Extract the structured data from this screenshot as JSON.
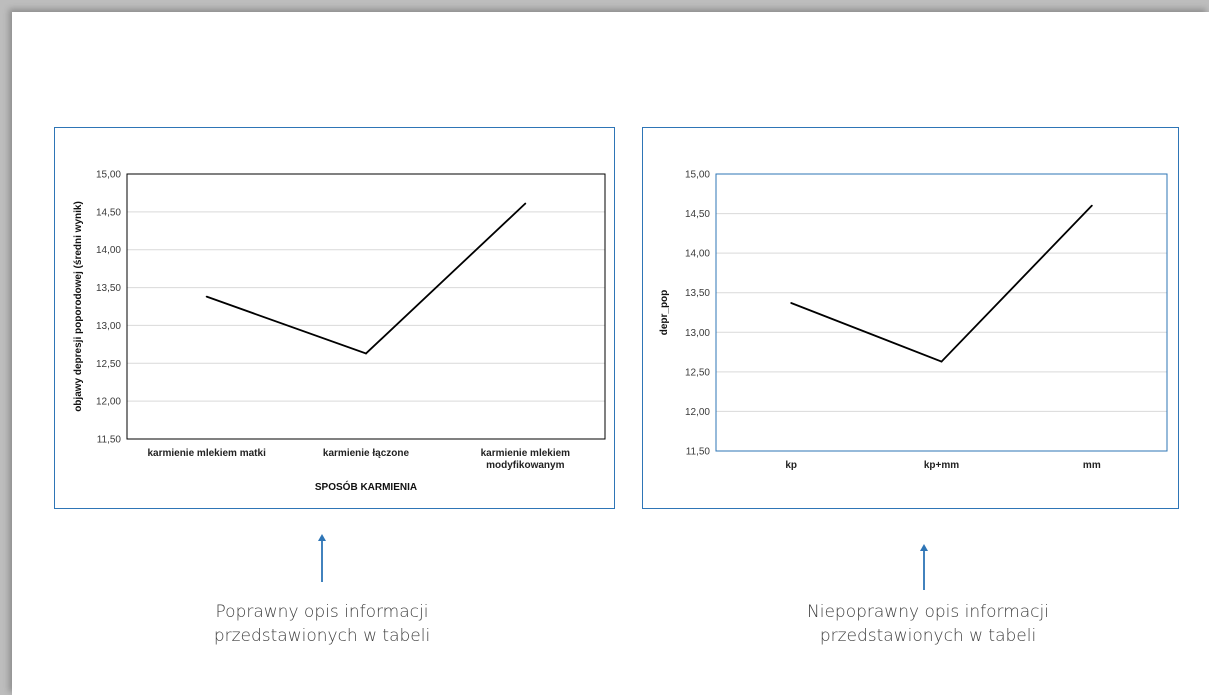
{
  "chart_data": [
    {
      "type": "line",
      "title": "",
      "categories": [
        "karmienie mlekiem matki",
        "karmienie łączone",
        "karmienie mlekiem modyfikowanym"
      ],
      "category_lines": [
        [
          "karmienie mlekiem matki"
        ],
        [
          "karmienie łączone"
        ],
        [
          "karmienie mlekiem",
          "modyfikowanym"
        ]
      ],
      "values": [
        13.38,
        12.63,
        14.61
      ],
      "xlabel": "SPOSÓB KARMIENIA",
      "ylabel": "objawy depresji poporodowej (średni wynik)",
      "ylim": [
        11.5,
        15.0
      ],
      "yticks": [
        "15,00",
        "14,50",
        "14,00",
        "13,50",
        "13,00",
        "12,50",
        "12,00",
        "11,50"
      ],
      "grid": true,
      "legend": "none",
      "frame_color": "#000000",
      "line_color": "#000000"
    },
    {
      "type": "line",
      "title": "",
      "categories": [
        "kp",
        "kp+mm",
        "mm"
      ],
      "category_lines": [
        [
          "kp"
        ],
        [
          "kp+mm"
        ],
        [
          "mm"
        ]
      ],
      "values": [
        13.37,
        12.63,
        14.6
      ],
      "xlabel": "",
      "ylabel": "depr_pop",
      "ylim": [
        11.5,
        15.0
      ],
      "yticks": [
        "15,00",
        "14,50",
        "14,00",
        "13,50",
        "13,00",
        "12,50",
        "12,00",
        "11,50"
      ],
      "grid": true,
      "legend": "none",
      "frame_color": "#2e75b6",
      "line_color": "#000000"
    }
  ],
  "captions": {
    "left": "Poprawny opis informacji\nprzedstawionych w tabeli",
    "right": "Niepoprawny opis informacji\nprzedstawionych w tabeli"
  },
  "colors": {
    "box_border": "#2e75b6",
    "arrow": "#2e75b6",
    "grid": "#d9d9d9"
  }
}
